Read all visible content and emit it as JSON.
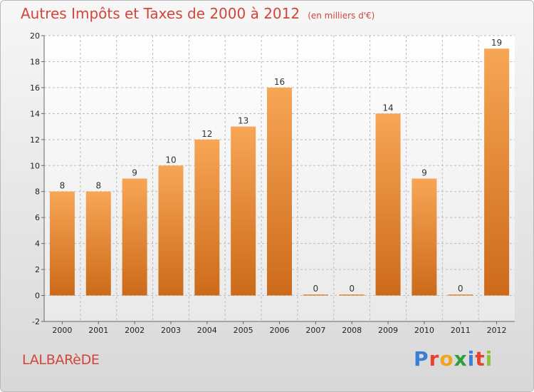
{
  "header": {
    "title": "Autres Impôts et Taxes de 2000 à 2012",
    "subtitle": "(en milliers d'€)"
  },
  "footer": {
    "commune": "LALBARèDE",
    "logo_letters": [
      {
        "char": "P",
        "color": "#3a7fd5"
      },
      {
        "char": "r",
        "color": "#e8412c"
      },
      {
        "char": "o",
        "color": "#f2a51a"
      },
      {
        "char": "x",
        "color": "#2e9e3f"
      },
      {
        "char": "i",
        "color": "#3a7fd5"
      },
      {
        "char": "t",
        "color": "#e8412c"
      },
      {
        "char": "i",
        "color": "#8bc53f"
      }
    ]
  },
  "colors": {
    "bar_top": "#f7a655",
    "bar_bottom": "#cc6a1a",
    "grid": "#bbbbbb",
    "accent": "#d1453b"
  },
  "chart_data": {
    "type": "bar",
    "title": "Autres Impôts et Taxes de 2000 à 2012",
    "subtitle": "(en milliers d'€)",
    "xlabel": "",
    "ylabel": "",
    "categories": [
      "2000",
      "2001",
      "2002",
      "2003",
      "2004",
      "2005",
      "2006",
      "2007",
      "2008",
      "2009",
      "2010",
      "2011",
      "2012"
    ],
    "values": [
      8,
      8,
      9,
      10,
      12,
      13,
      16,
      0,
      0,
      14,
      9,
      0,
      19
    ],
    "ylim": [
      -2,
      20
    ],
    "yticks": [
      -2,
      0,
      2,
      4,
      6,
      8,
      10,
      12,
      14,
      16,
      18,
      20
    ],
    "grid": true
  }
}
